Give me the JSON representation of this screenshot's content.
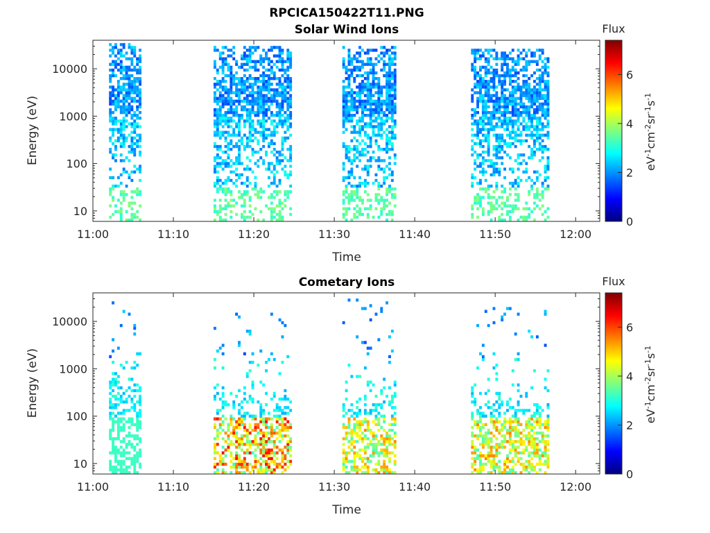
{
  "figure": {
    "title": "RPCICA150422T11.PNG"
  },
  "colorbar": {
    "label": "Flux",
    "unit_text": "eV-1cm-2sr-1s-1",
    "range": [
      0,
      7.4
    ],
    "ticks": [
      "0",
      "2",
      "4",
      "6"
    ],
    "colormap": "jet",
    "colors": [
      "#00007f",
      "#0000ff",
      "#007fff",
      "#00ffff",
      "#7fff7f",
      "#ffff00",
      "#ff7f00",
      "#ff0000",
      "#7f0000"
    ]
  },
  "chart_data": [
    {
      "type": "heatmap",
      "title": "Solar Wind Ions",
      "xlabel": "Time",
      "ylabel": "Energy (eV)",
      "yscale": "log",
      "ylim": [
        6,
        40000
      ],
      "xlim": [
        "11:00",
        "12:03"
      ],
      "xticks": [
        "11:00",
        "11:10",
        "11:20",
        "11:30",
        "11:40",
        "11:50",
        "12:00"
      ],
      "yticks": [
        "10",
        "100",
        "1000",
        "10000"
      ],
      "grid": false,
      "bursts": [
        {
          "start": "11:02",
          "end": "11:05",
          "peak_energy_eV": 2000,
          "max_energy_eV": 35000,
          "peak_flux": 3.0
        },
        {
          "start": "11:15",
          "end": "11:24",
          "peak_energy_eV": 2000,
          "max_energy_eV": 30000,
          "peak_flux": 3.2
        },
        {
          "start": "11:31",
          "end": "11:37",
          "peak_energy_eV": 2000,
          "max_energy_eV": 30000,
          "peak_flux": 3.2
        },
        {
          "start": "11:47",
          "end": "11:56",
          "peak_energy_eV": 2000,
          "max_energy_eV": 25000,
          "peak_flux": 3.2
        }
      ]
    },
    {
      "type": "heatmap",
      "title": "Cometary Ions",
      "xlabel": "Time",
      "ylabel": "Energy (eV)",
      "yscale": "log",
      "ylim": [
        6,
        40000
      ],
      "xlim": [
        "11:00",
        "12:03"
      ],
      "xticks": [
        "11:00",
        "11:10",
        "11:20",
        "11:30",
        "11:40",
        "11:50",
        "12:00"
      ],
      "yticks": [
        "10",
        "100",
        "1000",
        "10000"
      ],
      "grid": false,
      "bursts": [
        {
          "start": "11:02",
          "end": "11:05",
          "peak_energy_eV": 50,
          "max_energy_eV": 35000,
          "peak_flux": 3.2
        },
        {
          "start": "11:15",
          "end": "11:24",
          "peak_energy_eV": 20,
          "max_energy_eV": 15000,
          "peak_flux": 6.5
        },
        {
          "start": "11:31",
          "end": "11:37",
          "peak_energy_eV": 20,
          "max_energy_eV": 30000,
          "peak_flux": 5.5
        },
        {
          "start": "11:47",
          "end": "11:56",
          "peak_energy_eV": 20,
          "max_energy_eV": 20000,
          "peak_flux": 5.5
        }
      ]
    }
  ]
}
